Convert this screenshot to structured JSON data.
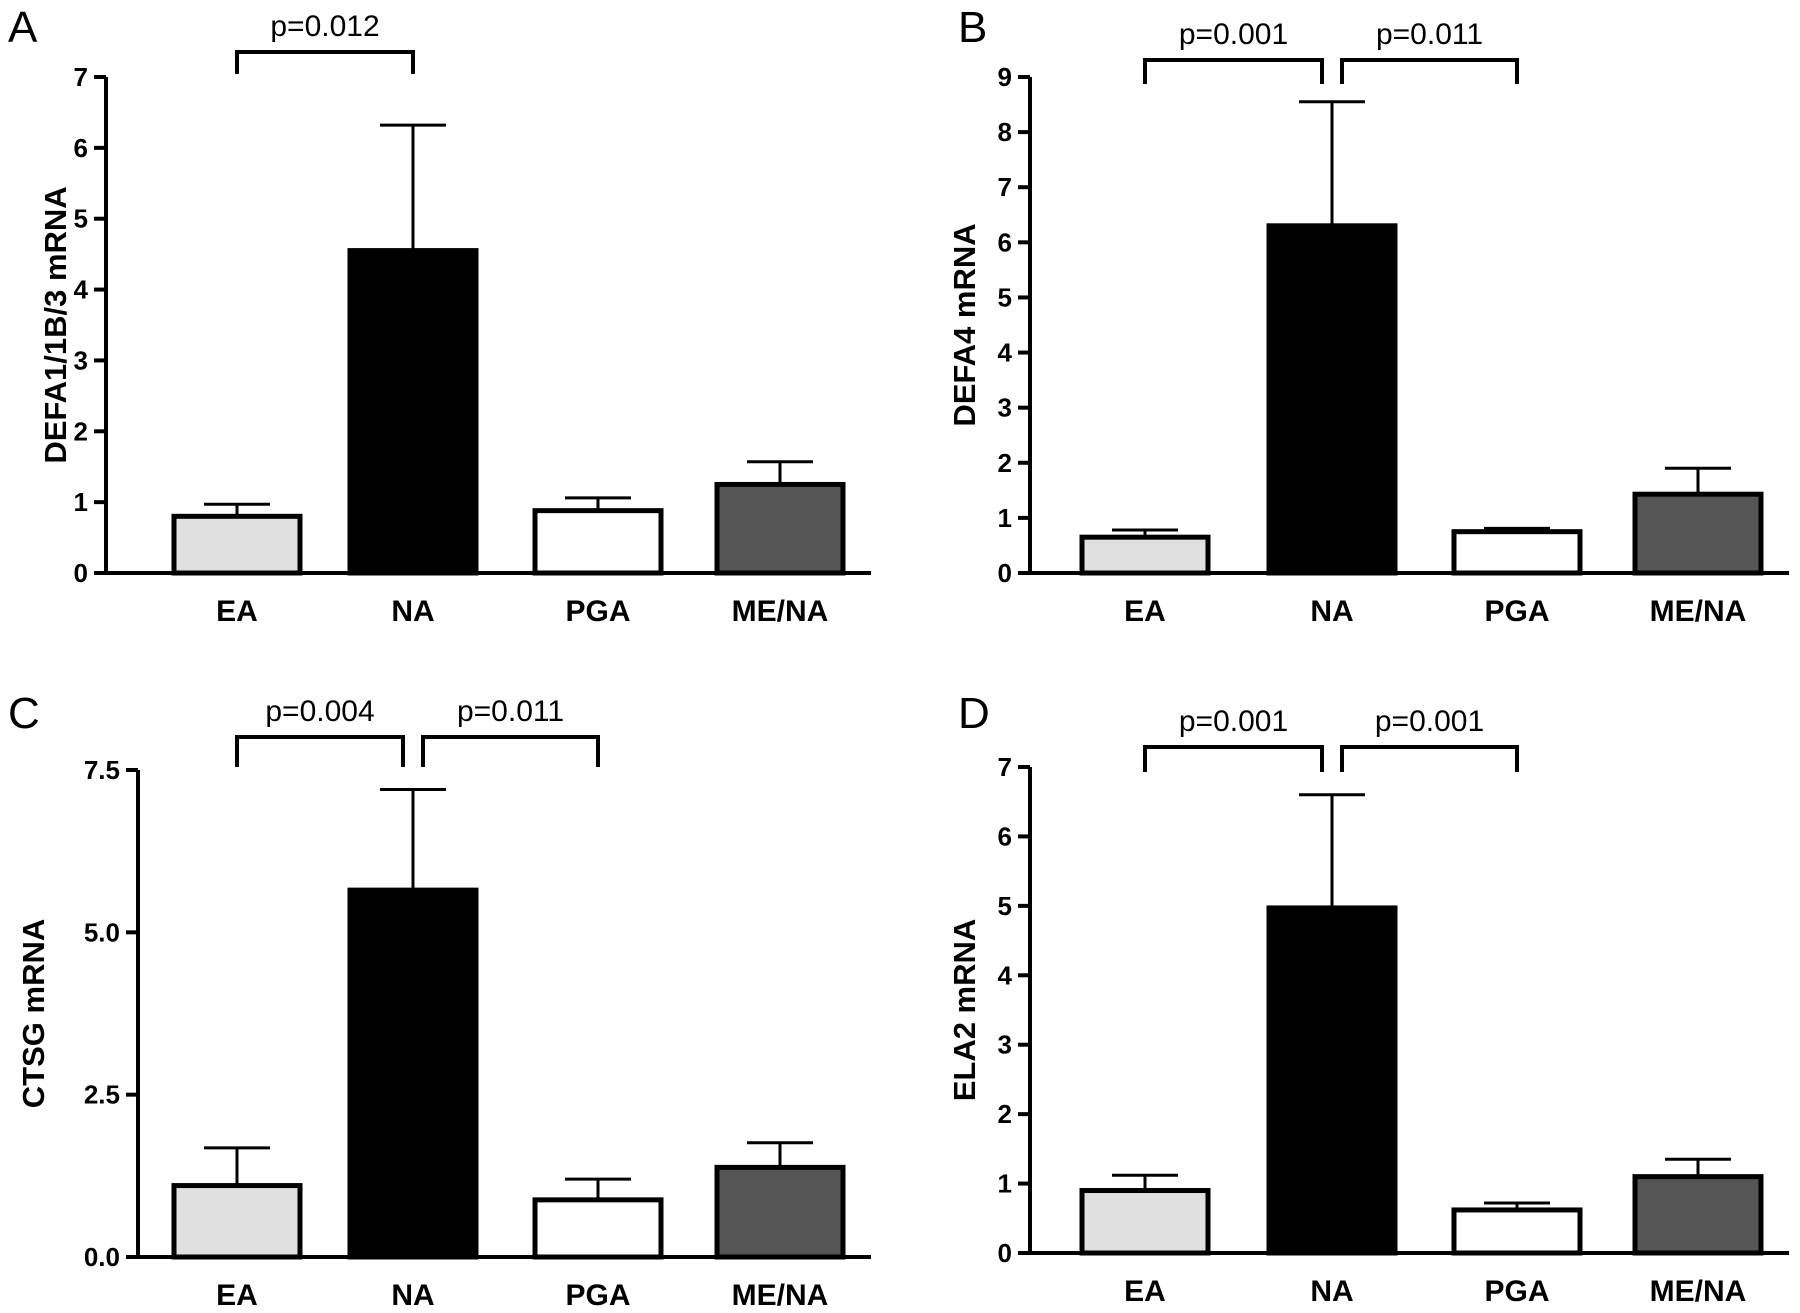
{
  "colors": {
    "EA": "#e0e0e0",
    "NA": "#000000",
    "PGA": "#ffffff",
    "ME/NA": "#555555",
    "stroke": "#000000"
  },
  "chart_data": [
    {
      "panel": "A",
      "type": "bar",
      "categories": [
        "EA",
        "NA",
        "PGA",
        "ME/NA"
      ],
      "values": [
        0.8,
        4.55,
        0.88,
        1.25
      ],
      "errors": [
        0.17,
        1.77,
        0.18,
        0.32
      ],
      "ylabel": "DEFA1/1B/3 mRNA",
      "ylim": [
        0,
        7
      ],
      "yticks": [
        0,
        1,
        2,
        3,
        4,
        5,
        6,
        7
      ],
      "ytick_labels": [
        "0",
        "1",
        "2",
        "3",
        "4",
        "5",
        "6",
        "7"
      ],
      "brackets": [
        {
          "from": "EA",
          "to": "NA",
          "label": "p=0.012"
        }
      ]
    },
    {
      "panel": "B",
      "type": "bar",
      "categories": [
        "EA",
        "NA",
        "PGA",
        "ME/NA"
      ],
      "values": [
        0.65,
        6.3,
        0.75,
        1.43
      ],
      "errors": [
        0.13,
        2.25,
        0.06,
        0.47
      ],
      "ylabel": "DEFA4 mRNA",
      "ylim": [
        0,
        9
      ],
      "yticks": [
        0,
        1,
        2,
        3,
        4,
        5,
        6,
        7,
        8,
        9
      ],
      "ytick_labels": [
        "0",
        "1",
        "2",
        "3",
        "4",
        "5",
        "6",
        "7",
        "8",
        "9"
      ],
      "brackets": [
        {
          "from": "EA",
          "to": "NA",
          "label": "p=0.001"
        },
        {
          "from": "NA",
          "to": "PGA",
          "label": "p=0.011"
        }
      ]
    },
    {
      "panel": "C",
      "type": "bar",
      "categories": [
        "EA",
        "NA",
        "PGA",
        "ME/NA"
      ],
      "values": [
        1.1,
        5.65,
        0.88,
        1.38
      ],
      "errors": [
        0.58,
        1.55,
        0.32,
        0.38
      ],
      "ylabel": "CTSG mRNA",
      "ylim": [
        0,
        7.5
      ],
      "yticks": [
        0,
        2.5,
        5,
        7.5
      ],
      "ytick_labels": [
        "0.0",
        "2.5",
        "5.0",
        "7.5"
      ],
      "brackets": [
        {
          "from": "EA",
          "to": "NA",
          "label": "p=0.004"
        },
        {
          "from": "NA",
          "to": "PGA",
          "label": "p=0.011"
        }
      ]
    },
    {
      "panel": "D",
      "type": "bar",
      "categories": [
        "EA",
        "NA",
        "PGA",
        "ME/NA"
      ],
      "values": [
        0.9,
        4.97,
        0.62,
        1.1
      ],
      "errors": [
        0.22,
        1.63,
        0.1,
        0.25
      ],
      "ylabel": "ELA2 mRNA",
      "ylim": [
        0,
        7
      ],
      "yticks": [
        0,
        1,
        2,
        3,
        4,
        5,
        6,
        7
      ],
      "ytick_labels": [
        "0",
        "1",
        "2",
        "3",
        "4",
        "5",
        "6",
        "7"
      ],
      "brackets": [
        {
          "from": "EA",
          "to": "NA",
          "label": "p=0.001"
        },
        {
          "from": "NA",
          "to": "PGA",
          "label": "p=0.001"
        }
      ]
    }
  ]
}
